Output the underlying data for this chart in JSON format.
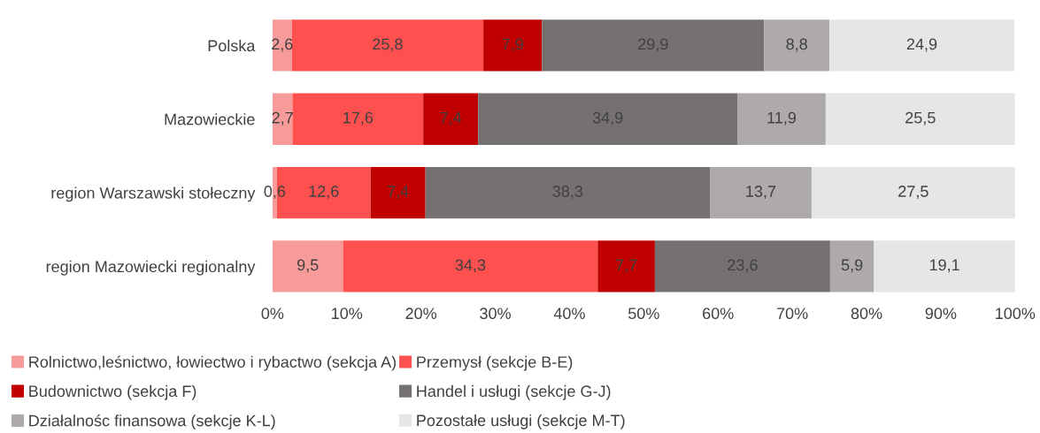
{
  "chart_data": {
    "type": "bar",
    "orientation": "horizontal",
    "stacked": true,
    "categories": [
      "Polska",
      "Mazowieckie",
      "region Warszawski stołeczny",
      "region Mazowiecki regionalny"
    ],
    "series": [
      {
        "name": "Rolnictwo,leśnictwo, łowiectwo i rybactwo (sekcja A)",
        "color": "#f79a9a",
        "values": [
          2.6,
          2.7,
          0.6,
          9.5
        ],
        "value_labels": [
          "2,6",
          "2,7",
          "0,6",
          "9,5"
        ]
      },
      {
        "name": "Przemysł (sekcje B-E)",
        "color": "#ff5050",
        "values": [
          25.8,
          17.6,
          12.6,
          34.3
        ],
        "value_labels": [
          "25,8",
          "17,6",
          "12,6",
          "34,3"
        ]
      },
      {
        "name": "Budownictwo (sekcja F)",
        "color": "#c00000",
        "values": [
          7.9,
          7.4,
          7.4,
          7.7
        ],
        "value_labels": [
          "7,9",
          "7,4",
          "7,4",
          "7,7"
        ]
      },
      {
        "name": "Handel i usługi (sekcje G-J)",
        "color": "#767171",
        "values": [
          29.9,
          34.9,
          38.3,
          23.6
        ],
        "value_labels": [
          "29,9",
          "34,9",
          "38,3",
          "23,6"
        ]
      },
      {
        "name": "Działalnośc finansowa (sekcje K-L)",
        "color": "#aeaaaa",
        "values": [
          8.8,
          11.9,
          13.7,
          5.9
        ],
        "value_labels": [
          "8,8",
          "11,9",
          "13,7",
          "5,9"
        ]
      },
      {
        "name": "Pozostałe usługi (sekcje M-T)",
        "color": "#e7e6e6",
        "values": [
          24.9,
          25.5,
          27.5,
          19.1
        ],
        "value_labels": [
          "24,9",
          "25,5",
          "27,5",
          "19,1"
        ]
      }
    ],
    "xlim": [
      0,
      100
    ],
    "xticks": [
      {
        "value": 0,
        "label": "0%"
      },
      {
        "value": 10,
        "label": "10%"
      },
      {
        "value": 20,
        "label": "20%"
      },
      {
        "value": 30,
        "label": "30%"
      },
      {
        "value": 40,
        "label": "40%"
      },
      {
        "value": 50,
        "label": "50%"
      },
      {
        "value": 60,
        "label": "60%"
      },
      {
        "value": 70,
        "label": "70%"
      },
      {
        "value": 80,
        "label": "80%"
      },
      {
        "value": 90,
        "label": "90%"
      },
      {
        "value": 100,
        "label": "100%"
      }
    ],
    "legend": "bottom"
  }
}
